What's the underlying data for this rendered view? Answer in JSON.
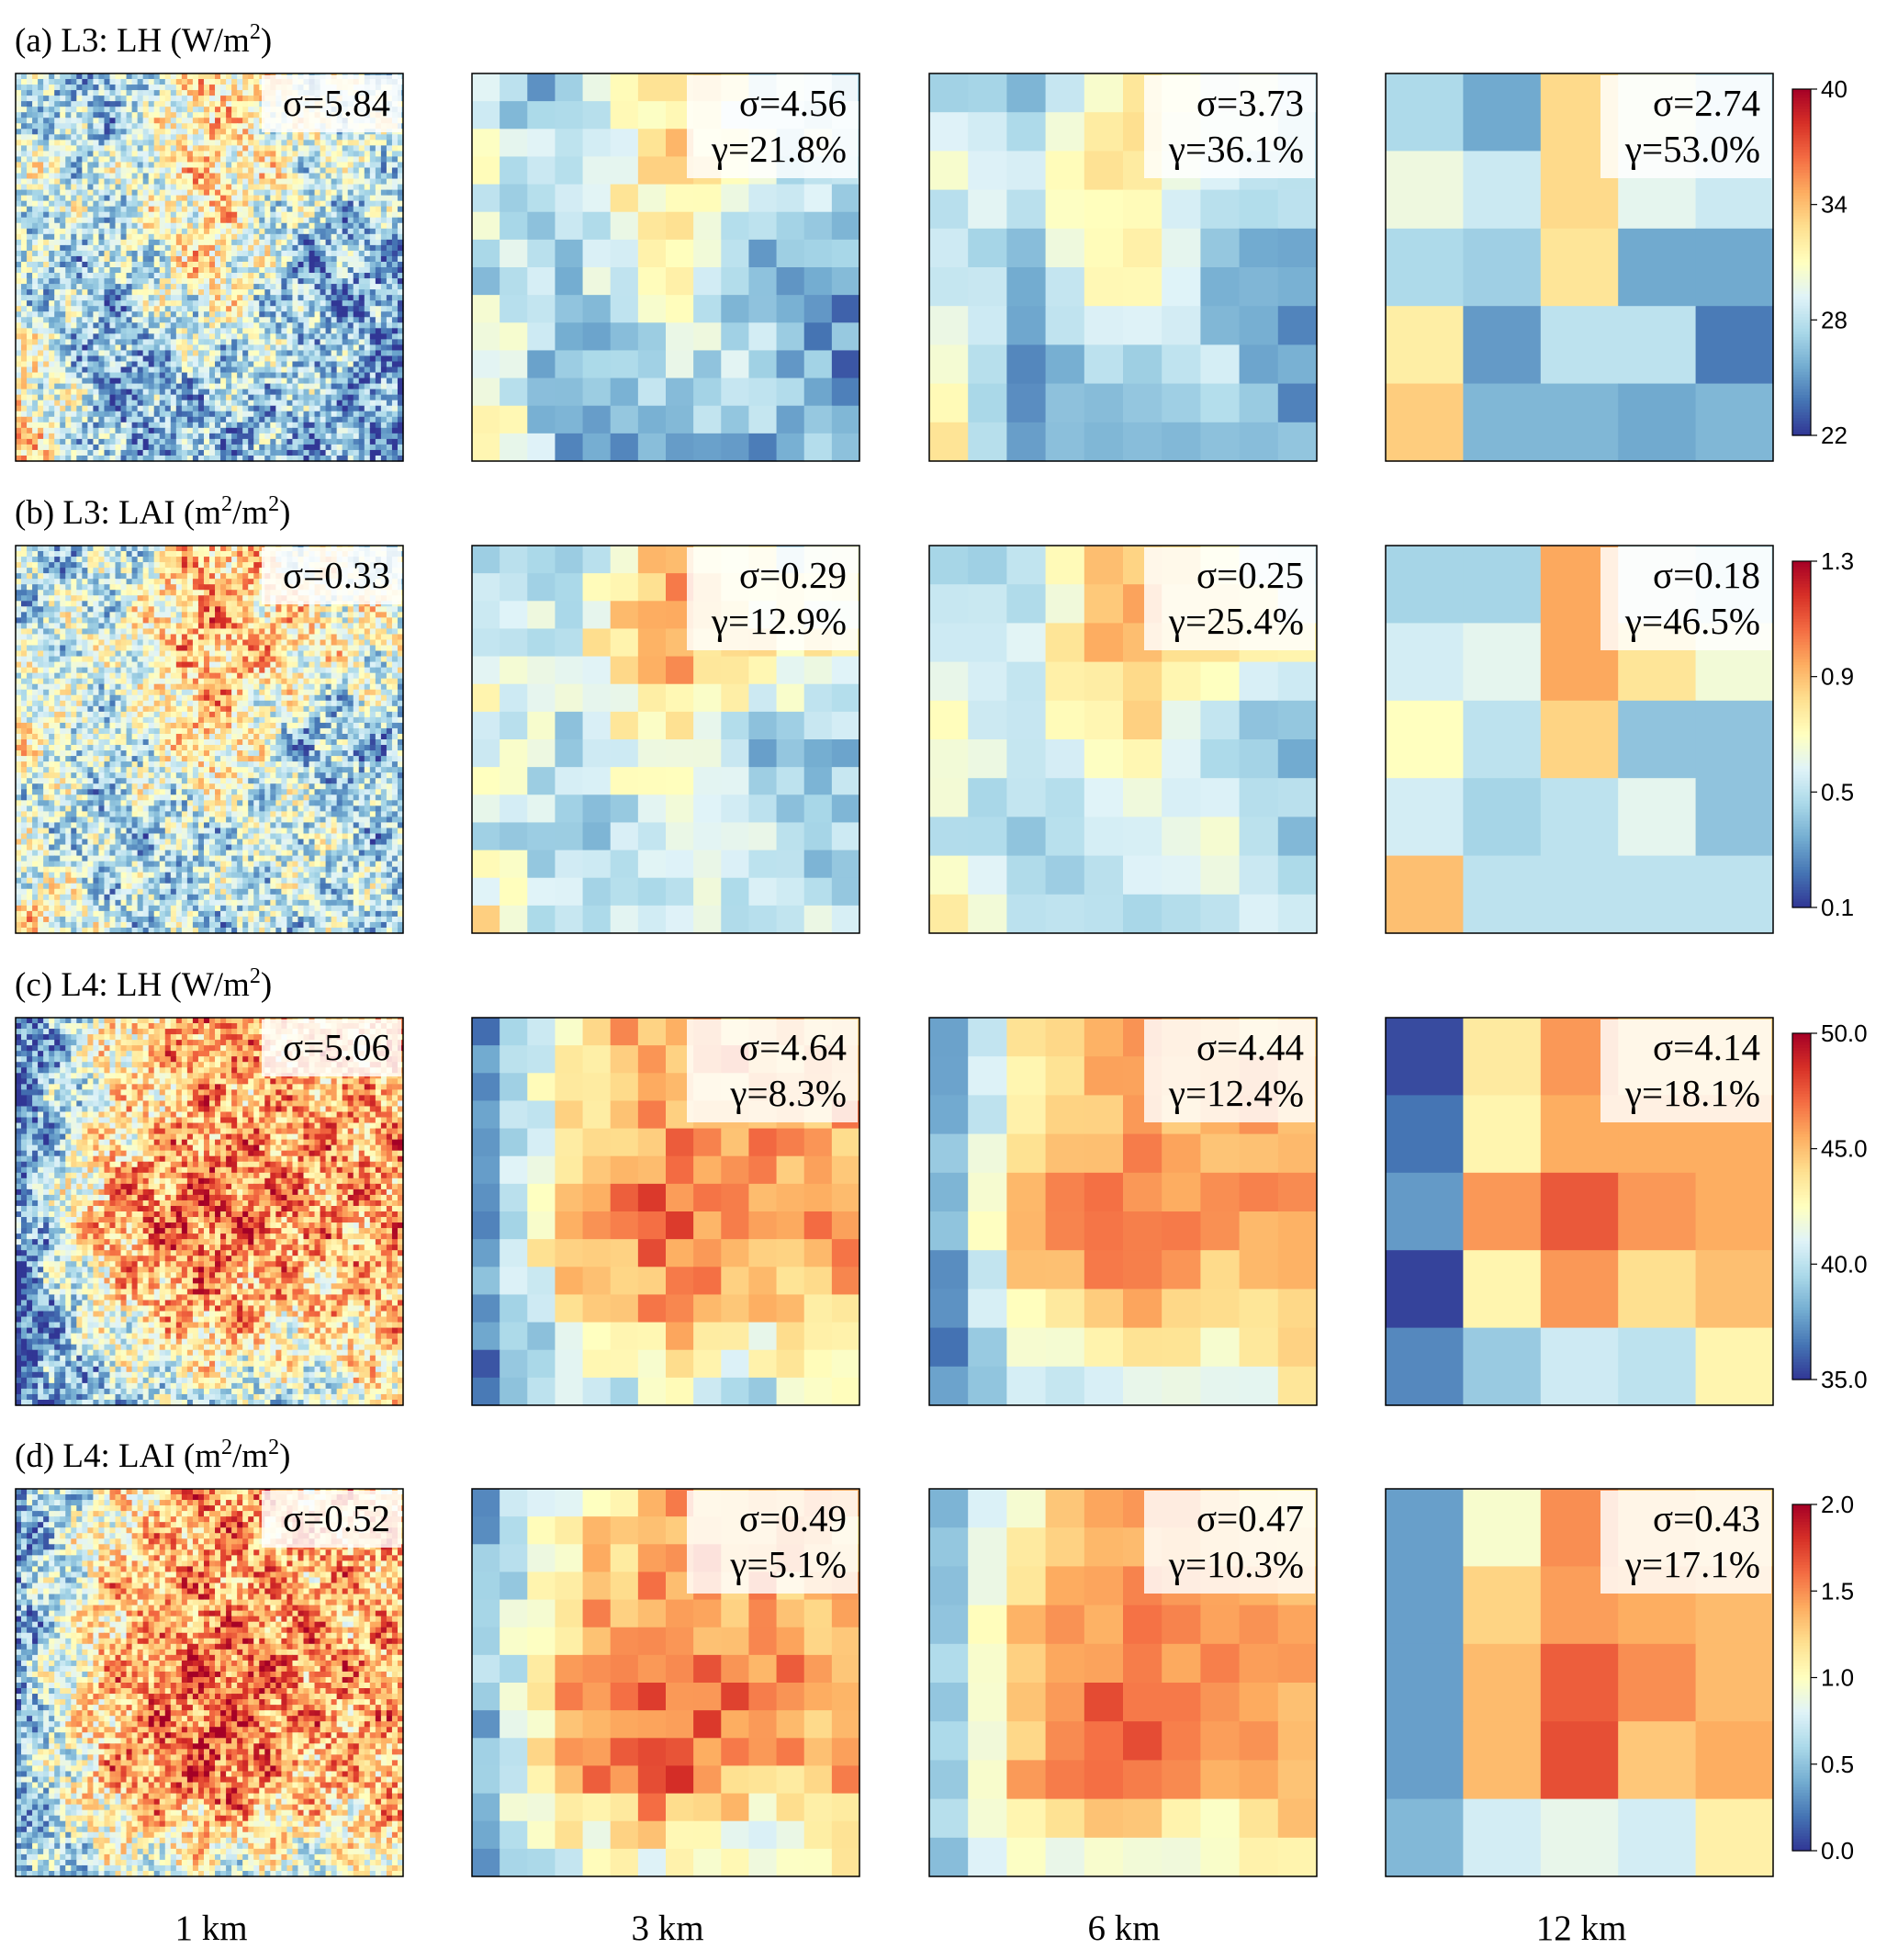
{
  "colormap": [
    "#313695",
    "#4575b4",
    "#74add1",
    "#abd9e9",
    "#e0f3f8",
    "#ffffbf",
    "#fee090",
    "#fdae61",
    "#f46d43",
    "#d73027",
    "#a50026"
  ],
  "columns": [
    "1 km",
    "3 km",
    "6 km",
    "12 km"
  ],
  "chart_data": [
    {
      "type": "heatmap",
      "panel": "a",
      "title_prefix": "(a) L3: LH (W/m",
      "title_sup": "2",
      "title_suffix": ")",
      "colorbar": {
        "range": [
          22,
          40
        ],
        "ticks": [
          "22",
          "28",
          "34",
          "40"
        ]
      },
      "subplots": [
        {
          "resolution": "1 km",
          "sigma": "σ=5.84",
          "gamma": ""
        },
        {
          "resolution": "3 km",
          "sigma": "σ=4.56",
          "gamma": "γ=21.8%"
        },
        {
          "resolution": "6 km",
          "sigma": "σ=3.73",
          "gamma": "γ=36.1%"
        },
        {
          "resolution": "12 km",
          "sigma": "σ=2.74",
          "gamma": "γ=53.0%"
        }
      ],
      "grid_12km": [
        [
          27.5,
          25.5,
          33.0,
          30.0,
          28.5
        ],
        [
          30.0,
          28.5,
          33.0,
          29.5,
          28.5
        ],
        [
          27.5,
          27.0,
          32.5,
          25.5,
          25.5
        ],
        [
          32.0,
          25.0,
          28.0,
          28.0,
          24.0
        ],
        [
          33.5,
          26.0,
          26.0,
          25.5,
          26.0
        ]
      ]
    },
    {
      "type": "heatmap",
      "panel": "b",
      "title_prefix": "(b) L3: LAI (m",
      "title_sup": "2",
      "title_mid": "/m",
      "title_sup2": "2",
      "title_suffix": ")",
      "colorbar": {
        "range": [
          0.1,
          1.3
        ],
        "ticks": [
          "0.1",
          "0.5",
          "0.9",
          "1.3"
        ]
      },
      "subplots": [
        {
          "resolution": "1 km",
          "sigma": "σ=0.33",
          "gamma": ""
        },
        {
          "resolution": "3 km",
          "sigma": "σ=0.29",
          "gamma": "γ=12.9%"
        },
        {
          "resolution": "6 km",
          "sigma": "σ=0.25",
          "gamma": "γ=25.4%"
        },
        {
          "resolution": "12 km",
          "sigma": "σ=0.18",
          "gamma": "γ=46.5%"
        }
      ],
      "grid_12km": [
        [
          0.45,
          0.45,
          0.95,
          0.6,
          0.55
        ],
        [
          0.55,
          0.6,
          0.95,
          0.8,
          0.65
        ],
        [
          0.7,
          0.5,
          0.85,
          0.4,
          0.4
        ],
        [
          0.55,
          0.45,
          0.5,
          0.6,
          0.4
        ],
        [
          0.9,
          0.5,
          0.5,
          0.5,
          0.5
        ]
      ]
    },
    {
      "type": "heatmap",
      "panel": "c",
      "title_prefix": "(c) L4: LH (W/m",
      "title_sup": "2",
      "title_suffix": ")",
      "colorbar": {
        "range": [
          35.0,
          50.0
        ],
        "ticks": [
          "35.0",
          "40.0",
          "45.0",
          "50.0"
        ]
      },
      "subplots": [
        {
          "resolution": "1 km",
          "sigma": "σ=5.06",
          "gamma": ""
        },
        {
          "resolution": "3 km",
          "sigma": "σ=4.64",
          "gamma": "γ=8.3%"
        },
        {
          "resolution": "6 km",
          "sigma": "σ=4.44",
          "gamma": "γ=12.4%"
        },
        {
          "resolution": "12 km",
          "sigma": "σ=4.14",
          "gamma": "γ=18.1%"
        }
      ],
      "grid_12km": [
        [
          35.5,
          43.5,
          46.0,
          44.5,
          44.5
        ],
        [
          36.5,
          43.0,
          45.5,
          45.5,
          45.5
        ],
        [
          37.5,
          46.0,
          47.5,
          46.0,
          45.5
        ],
        [
          35.3,
          43.0,
          46.0,
          44.0,
          45.0
        ],
        [
          37.0,
          39.0,
          40.5,
          40.0,
          43.0
        ]
      ]
    },
    {
      "type": "heatmap",
      "panel": "d",
      "title_prefix": "(d) L4: LAI (m",
      "title_sup": "2",
      "title_mid": "/m",
      "title_sup2": "2",
      "title_suffix": ")",
      "colorbar": {
        "range": [
          0.0,
          2.0
        ],
        "ticks": [
          "0.0",
          "0.5",
          "1.0",
          "1.5",
          "2.0"
        ]
      },
      "subplots": [
        {
          "resolution": "1 km",
          "sigma": "σ=0.52",
          "gamma": ""
        },
        {
          "resolution": "3 km",
          "sigma": "σ=0.49",
          "gamma": "γ=5.1%"
        },
        {
          "resolution": "6 km",
          "sigma": "σ=0.47",
          "gamma": "γ=10.3%"
        },
        {
          "resolution": "12 km",
          "sigma": "σ=0.43",
          "gamma": "γ=17.1%"
        }
      ],
      "grid_12km": [
        [
          0.35,
          0.95,
          1.5,
          1.3,
          1.25
        ],
        [
          0.35,
          1.25,
          1.45,
          1.4,
          1.35
        ],
        [
          0.35,
          1.35,
          1.65,
          1.5,
          1.35
        ],
        [
          0.35,
          1.35,
          1.7,
          1.3,
          1.4
        ],
        [
          0.45,
          0.75,
          0.85,
          0.75,
          1.1
        ]
      ]
    }
  ]
}
